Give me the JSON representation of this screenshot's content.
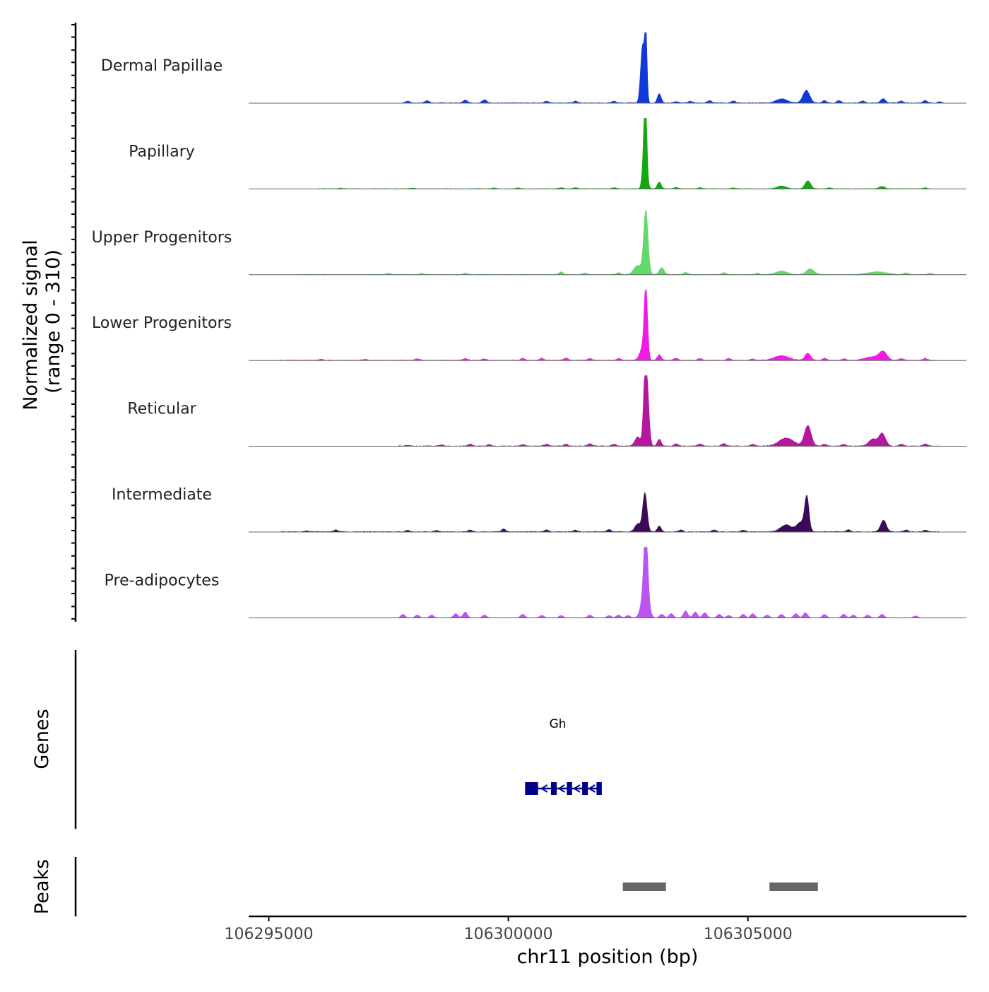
{
  "chart_data": {
    "type": "area",
    "title": "",
    "ylabel": "Normalized signal",
    "ylabel_range": "(range 0 - 310)",
    "xlabel": "chr11 position (bp)",
    "ylim": [
      0,
      310
    ],
    "xlim": [
      106294580,
      106309560
    ],
    "x_ticks": [
      106295000,
      106300000,
      106305000
    ],
    "x_tick_labels": [
      "106295000",
      "106300000",
      "106305000"
    ],
    "peak_centers": [
      106302870,
      106303150,
      106305700,
      106306250,
      106307820
    ],
    "tracks": [
      {
        "name": "Dermal Papillae",
        "color": "#1139d8",
        "peaks": [
          [
            106302800,
            250,
            40
          ],
          [
            106302870,
            300,
            25
          ],
          [
            106303150,
            40,
            40
          ],
          [
            106306220,
            55,
            70
          ],
          [
            106305700,
            18,
            120
          ],
          [
            106307820,
            18,
            50
          ]
        ],
        "bumps": [
          [
            106297900,
            8
          ],
          [
            106298300,
            10
          ],
          [
            106299100,
            12
          ],
          [
            106299500,
            14
          ],
          [
            106300800,
            8
          ],
          [
            106301400,
            8
          ],
          [
            106302200,
            8
          ],
          [
            106303500,
            6
          ],
          [
            106303800,
            7
          ],
          [
            106304200,
            10
          ],
          [
            106304700,
            8
          ],
          [
            106306600,
            10
          ],
          [
            106306900,
            10
          ],
          [
            106307400,
            8
          ],
          [
            106308200,
            8
          ],
          [
            106308700,
            10
          ],
          [
            106309000,
            7
          ]
        ],
        "noise_from": 106297800,
        "noise_to": 106308900,
        "noise": 3
      },
      {
        "name": "Papillary",
        "color": "#13a80f",
        "peaks": [
          [
            106302850,
            250,
            40
          ],
          [
            106302860,
            290,
            22
          ],
          [
            106303150,
            30,
            40
          ],
          [
            106306250,
            35,
            60
          ],
          [
            106305700,
            12,
            100
          ],
          [
            106307800,
            10,
            60
          ]
        ],
        "bumps": [
          [
            106296500,
            3
          ],
          [
            106298000,
            3
          ],
          [
            106299700,
            4
          ],
          [
            106300200,
            4
          ],
          [
            106301100,
            5
          ],
          [
            106301400,
            5
          ],
          [
            106302200,
            5
          ],
          [
            106303500,
            6
          ],
          [
            106304000,
            5
          ],
          [
            106304700,
            4
          ],
          [
            106306700,
            4
          ],
          [
            106308700,
            5
          ]
        ],
        "noise_from": 106296000,
        "noise_to": 106308800,
        "noise": 2
      },
      {
        "name": "Upper Progenitors",
        "color": "#63d86b",
        "peaks": [
          [
            106302870,
            280,
            45
          ],
          [
            106302700,
            40,
            80
          ],
          [
            106303200,
            30,
            50
          ],
          [
            106306300,
            25,
            80
          ],
          [
            106305700,
            15,
            120
          ],
          [
            106307700,
            12,
            200
          ]
        ],
        "bumps": [
          [
            106297500,
            6
          ],
          [
            106298200,
            5
          ],
          [
            106299100,
            6
          ],
          [
            106301100,
            12
          ],
          [
            106301600,
            7
          ],
          [
            106302300,
            8
          ],
          [
            106303700,
            10
          ],
          [
            106304500,
            8
          ],
          [
            106305200,
            6
          ],
          [
            106308300,
            8
          ],
          [
            106308800,
            6
          ]
        ],
        "noise_from": 106295700,
        "noise_to": 106308900,
        "noise": 2
      },
      {
        "name": "Lower Progenitors",
        "color": "#f21be6",
        "peaks": [
          [
            106302870,
            310,
            35
          ],
          [
            106302800,
            50,
            60
          ],
          [
            106303150,
            25,
            40
          ],
          [
            106306250,
            30,
            60
          ],
          [
            106305700,
            20,
            150
          ],
          [
            106307820,
            35,
            80
          ],
          [
            106307600,
            15,
            150
          ]
        ],
        "bumps": [
          [
            106296100,
            4
          ],
          [
            106297000,
            4
          ],
          [
            106298100,
            6
          ],
          [
            106299100,
            8
          ],
          [
            106299500,
            6
          ],
          [
            106300300,
            8
          ],
          [
            106300700,
            9
          ],
          [
            106301200,
            10
          ],
          [
            106301700,
            7
          ],
          [
            106302300,
            8
          ],
          [
            106303500,
            9
          ],
          [
            106304000,
            8
          ],
          [
            106304600,
            8
          ],
          [
            106305100,
            6
          ],
          [
            106306600,
            8
          ],
          [
            106307000,
            7
          ],
          [
            106308200,
            8
          ],
          [
            106308700,
            8
          ]
        ],
        "noise_from": 106295200,
        "noise_to": 106309000,
        "noise": 3
      },
      {
        "name": "Reticular",
        "color": "#b5179f",
        "peaks": [
          [
            106302850,
            250,
            35
          ],
          [
            106302900,
            220,
            40
          ],
          [
            106302700,
            40,
            60
          ],
          [
            106303150,
            30,
            40
          ],
          [
            106306250,
            90,
            70
          ],
          [
            106305800,
            35,
            150
          ],
          [
            106307800,
            55,
            70
          ],
          [
            106307600,
            30,
            80
          ]
        ],
        "bumps": [
          [
            106297900,
            4
          ],
          [
            106298600,
            5
          ],
          [
            106299200,
            8
          ],
          [
            106299600,
            6
          ],
          [
            106300300,
            7
          ],
          [
            106300800,
            8
          ],
          [
            106301200,
            8
          ],
          [
            106301700,
            10
          ],
          [
            106302200,
            8
          ],
          [
            106303500,
            10
          ],
          [
            106304000,
            9
          ],
          [
            106304500,
            10
          ],
          [
            106305100,
            8
          ],
          [
            106306600,
            8
          ],
          [
            106307000,
            7
          ],
          [
            106308200,
            8
          ],
          [
            106308700,
            9
          ]
        ],
        "noise_from": 106297700,
        "noise_to": 106309000,
        "noise": 3
      },
      {
        "name": "Intermediate",
        "color": "#3b0b5a",
        "peaks": [
          [
            106302850,
            170,
            45
          ],
          [
            106302700,
            35,
            60
          ],
          [
            106303150,
            25,
            40
          ],
          [
            106306230,
            150,
            45
          ],
          [
            106305800,
            30,
            120
          ],
          [
            106306100,
            40,
            80
          ],
          [
            106307830,
            50,
            60
          ]
        ],
        "bumps": [
          [
            106295800,
            4
          ],
          [
            106296400,
            8
          ],
          [
            106297900,
            6
          ],
          [
            106298500,
            6
          ],
          [
            106299200,
            8
          ],
          [
            106299900,
            12
          ],
          [
            106300800,
            8
          ],
          [
            106301400,
            8
          ],
          [
            106302100,
            10
          ],
          [
            106303600,
            8
          ],
          [
            106304300,
            8
          ],
          [
            106304900,
            7
          ],
          [
            106307100,
            8
          ],
          [
            106308300,
            8
          ],
          [
            106308700,
            7
          ]
        ],
        "noise_from": 106295200,
        "noise_to": 106309000,
        "noise": 3
      },
      {
        "name": "Pre-adipocytes",
        "color": "#bb55f2",
        "peaks": [
          [
            106302870,
            290,
            40
          ],
          [
            106302850,
            120,
            70
          ]
        ],
        "bumps": [
          [
            106297800,
            15
          ],
          [
            106298100,
            12
          ],
          [
            106298400,
            12
          ],
          [
            106298900,
            18
          ],
          [
            106299100,
            25
          ],
          [
            106299500,
            12
          ],
          [
            106300300,
            15
          ],
          [
            106300700,
            10
          ],
          [
            106301100,
            10
          ],
          [
            106301700,
            12
          ],
          [
            106302100,
            10
          ],
          [
            106302300,
            12
          ],
          [
            106302500,
            10
          ],
          [
            106303200,
            15
          ],
          [
            106303400,
            18
          ],
          [
            106303700,
            30
          ],
          [
            106303900,
            25
          ],
          [
            106304100,
            22
          ],
          [
            106304400,
            15
          ],
          [
            106304600,
            10
          ],
          [
            106304900,
            15
          ],
          [
            106305100,
            18
          ],
          [
            106305400,
            12
          ],
          [
            106305700,
            15
          ],
          [
            106306000,
            18
          ],
          [
            106306200,
            22
          ],
          [
            106306600,
            15
          ],
          [
            106307000,
            15
          ],
          [
            106307200,
            12
          ],
          [
            106307500,
            12
          ],
          [
            106307800,
            15
          ],
          [
            106308500,
            8
          ]
        ],
        "noise_from": 106297800,
        "noise_to": 106308600,
        "noise": 1
      }
    ],
    "genes": [
      {
        "name": "Gh",
        "start": 106300350,
        "end": 106301950,
        "strand": "-",
        "color": "#00008b",
        "exons": [
          [
            106300350,
            106300620
          ],
          [
            106300890,
            106301010
          ],
          [
            106301220,
            106301330
          ],
          [
            106301540,
            106301660
          ],
          [
            106301840,
            106301950
          ]
        ]
      }
    ],
    "gene_track_label": "Genes",
    "peak_track_label": "Peaks",
    "peak_regions": [
      [
        106302390,
        106303290
      ],
      [
        106305450,
        106306460
      ]
    ],
    "peak_color": "#666666"
  }
}
